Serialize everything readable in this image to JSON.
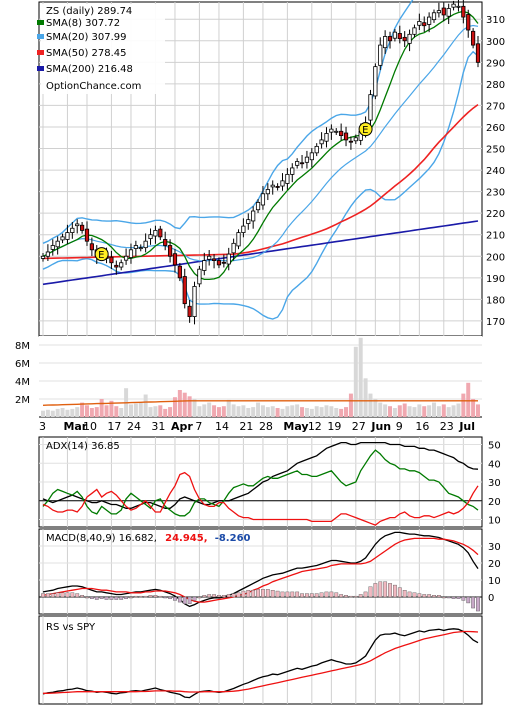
{
  "chart_data": [
    {
      "type": "candlestick",
      "title": "ZS (daily) 289.74",
      "source": "OptionChance.com",
      "legend_placement": "top-left",
      "y_ticks": [
        170,
        180,
        190,
        200,
        210,
        220,
        230,
        240,
        250,
        260,
        270,
        280,
        290,
        300,
        310
      ],
      "ylim": [
        163,
        318
      ],
      "x_ticks": [
        "3",
        "Mar",
        "10",
        "17",
        "24",
        "31",
        "Apr",
        "7",
        "14",
        "21",
        "28",
        "May",
        "12",
        "19",
        "27",
        "Jun",
        "9",
        "16",
        "23",
        "Jul"
      ],
      "legend": [
        {
          "label": "SMA(8) 307.72",
          "color": "#007a00"
        },
        {
          "label": "SMA(20) 307.99",
          "color": "#4aa6e8"
        },
        {
          "label": "SMA(50) 278.45",
          "color": "#ee2222"
        },
        {
          "label": "SMA(200) 216.48",
          "color": "#1a1aa8"
        }
      ],
      "bollinger_color": "#4aa6e8",
      "sma50_color": "#ee2222",
      "sma200_color": "#1a1aa8",
      "earnings_markers": [
        {
          "label": "E",
          "date_index": 12,
          "price": 201
        },
        {
          "label": "E",
          "date_index": 66,
          "price": 259
        }
      ],
      "close": [
        200,
        202,
        205,
        207,
        209,
        211,
        213,
        215,
        212,
        207,
        203,
        200,
        201,
        199,
        197,
        195,
        197,
        200,
        203,
        205,
        204,
        207,
        210,
        212,
        209,
        205,
        200,
        196,
        190,
        178,
        172,
        186,
        194,
        198,
        200,
        198,
        196,
        197,
        201,
        206,
        211,
        214,
        217,
        221,
        225,
        229,
        231,
        233,
        232,
        235,
        238,
        241,
        244,
        243,
        246,
        248,
        251,
        254,
        257,
        259,
        258,
        256,
        254,
        253,
        255,
        258,
        262,
        275,
        288,
        298,
        302,
        300,
        304,
        301,
        300,
        303,
        306,
        309,
        307,
        311,
        313,
        314,
        312,
        315,
        317,
        316,
        311,
        305,
        298,
        290
      ],
      "volume_axis": [
        "2M",
        "4M",
        "6M",
        "8M"
      ],
      "volume_max": 9,
      "volume_m": [
        0.7,
        0.8,
        0.7,
        0.9,
        1.0,
        0.8,
        0.9,
        1.1,
        1.6,
        1.3,
        1.0,
        1.1,
        2.0,
        1.3,
        1.8,
        1.2,
        1.0,
        3.2,
        1.4,
        1.5,
        1.6,
        2.5,
        1.1,
        1.2,
        1.3,
        0.9,
        1.1,
        2.2,
        3.0,
        2.7,
        2.3,
        2.0,
        1.2,
        1.4,
        1.6,
        1.3,
        1.1,
        1.2,
        1.9,
        1.4,
        1.2,
        1.3,
        1.0,
        1.1,
        1.6,
        1.3,
        1.1,
        1.2,
        1.0,
        0.9,
        1.2,
        1.3,
        1.4,
        1.1,
        1.0,
        0.9,
        1.2,
        1.1,
        1.3,
        1.2,
        1.0,
        0.9,
        1.1,
        2.6,
        7.8,
        8.8,
        4.3,
        2.6,
        2.0,
        1.6,
        1.4,
        1.2,
        1.0,
        1.3,
        1.5,
        1.2,
        1.1,
        1.4,
        1.2,
        1.3,
        1.6,
        1.2,
        1.4,
        1.1,
        1.3,
        1.5,
        2.6,
        3.8,
        2.0,
        1.4
      ],
      "volume_avg_color": "#e06010",
      "volume_avg_m": 1.7
    },
    {
      "type": "line",
      "title": "ADX(14) 36.85",
      "y_ticks": [
        10,
        20,
        30,
        40,
        50
      ],
      "ylim": [
        6,
        54
      ],
      "reference_line": 20,
      "series": [
        {
          "color": "#000000",
          "values": [
            21,
            20,
            19,
            20,
            21,
            22,
            23,
            22,
            21,
            20,
            19,
            19,
            20,
            19,
            18,
            18,
            17,
            16,
            16,
            17,
            18,
            19,
            19,
            18,
            17,
            16,
            16,
            18,
            21,
            22,
            21,
            20,
            19,
            18,
            18,
            19,
            20,
            20,
            20,
            21,
            22,
            23,
            24,
            26,
            28,
            30,
            31,
            33,
            34,
            35,
            36,
            38,
            40,
            41,
            42,
            43,
            44,
            46,
            48,
            49,
            50,
            51,
            51,
            50,
            50,
            51,
            51,
            51,
            51,
            51,
            51,
            50,
            50,
            50,
            49,
            49,
            49,
            48,
            48,
            47,
            47,
            46,
            45,
            44,
            43,
            41,
            40,
            38,
            37,
            36.85
          ]
        },
        {
          "color": "#007a00",
          "values": [
            17,
            20,
            24,
            26,
            25,
            24,
            23,
            25,
            22,
            17,
            14,
            13,
            17,
            15,
            13,
            13,
            15,
            21,
            24,
            22,
            20,
            18,
            16,
            20,
            21,
            17,
            15,
            13,
            12,
            12,
            14,
            19,
            21,
            21,
            19,
            18,
            17,
            20,
            24,
            27,
            28,
            29,
            28,
            28,
            30,
            32,
            33,
            32,
            32,
            33,
            34,
            35,
            36,
            34,
            34,
            33,
            33,
            34,
            35,
            36,
            33,
            30,
            28,
            29,
            30,
            36,
            40,
            44,
            47,
            45,
            42,
            40,
            39,
            37,
            37,
            36,
            36,
            35,
            33,
            31,
            31,
            30,
            27,
            24,
            23,
            22,
            20,
            18,
            17,
            15
          ]
        },
        {
          "color": "#ee1111",
          "values": [
            18,
            17,
            15,
            14,
            14,
            15,
            15,
            14,
            17,
            22,
            24,
            26,
            22,
            24,
            25,
            23,
            20,
            17,
            15,
            16,
            18,
            20,
            17,
            14,
            14,
            19,
            24,
            28,
            34,
            35,
            33,
            26,
            21,
            18,
            17,
            17,
            19,
            19,
            16,
            14,
            12,
            11,
            11,
            10,
            10,
            10,
            10,
            10,
            10,
            10,
            10,
            10,
            10,
            10,
            10,
            9,
            9,
            9,
            9,
            9,
            11,
            13,
            13,
            12,
            11,
            10,
            9,
            8,
            7,
            9,
            10,
            11,
            11,
            13,
            14,
            12,
            11,
            11,
            12,
            12,
            11,
            12,
            13,
            14,
            13,
            14,
            16,
            19,
            24,
            28
          ]
        }
      ]
    },
    {
      "type": "line",
      "title": "MACD(8,40,9) 16.682,",
      "title_value_red": "24.945,",
      "title_value_blue": "-8.260",
      "title_value_red_color": "#ee1111",
      "title_value_blue_color": "#1a4aa8",
      "y_ticks": [
        0,
        10,
        20,
        30
      ],
      "ylim": [
        -10,
        40
      ],
      "series": [
        {
          "color": "#000000",
          "values": [
            3,
            3.5,
            4,
            5,
            5.5,
            6,
            6.5,
            6.5,
            6,
            5,
            4,
            3,
            3,
            2.5,
            2,
            1.5,
            1.5,
            2,
            2.5,
            3,
            3,
            3.5,
            4,
            4.5,
            4,
            3,
            2,
            0.5,
            -1.5,
            -4,
            -5.5,
            -4.5,
            -3,
            -2,
            -1,
            -0.5,
            -0.5,
            0,
            1,
            2,
            3.5,
            5,
            6.5,
            8,
            9.5,
            11,
            12,
            13,
            13.5,
            14,
            15,
            16,
            17,
            17,
            17.5,
            18,
            18.5,
            19.5,
            20.5,
            21.5,
            21.5,
            21,
            20.5,
            20,
            20,
            21,
            23,
            27,
            31,
            34,
            36,
            37,
            38,
            38,
            37.5,
            37,
            37,
            36.5,
            36,
            36,
            35.5,
            35,
            34,
            33,
            32,
            31,
            29,
            26,
            21,
            16.68
          ]
        },
        {
          "color": "#ee1111",
          "values": [
            1,
            1.5,
            2,
            2.5,
            3,
            3.5,
            4,
            4.5,
            5,
            5,
            5,
            4.5,
            4,
            4,
            3.5,
            3,
            3,
            3,
            2.5,
            2.5,
            2.5,
            3,
            3,
            3.5,
            3.5,
            3.5,
            3,
            2.5,
            1.5,
            0,
            -1.5,
            -2.5,
            -3,
            -3,
            -2.5,
            -2,
            -1.5,
            -1,
            -0.5,
            0,
            1,
            1.5,
            2.5,
            4,
            5,
            6.5,
            7.5,
            9,
            10,
            11,
            12,
            13,
            14,
            15,
            15.5,
            16,
            16.5,
            17,
            17.5,
            18.5,
            19,
            19.5,
            19.5,
            19.5,
            19.5,
            19.5,
            20,
            21,
            23,
            25,
            27,
            29,
            31,
            32.5,
            33.5,
            34,
            34.5,
            34.5,
            34.5,
            34.5,
            34.5,
            34,
            34,
            33.5,
            33,
            32,
            31,
            29.5,
            27.5,
            24.95
          ]
        },
        {
          "color": "#222222",
          "values": [
            2,
            2,
            2,
            2.5,
            2.5,
            2.5,
            2.5,
            2,
            1,
            0,
            -1,
            -1.5,
            -1,
            -1.5,
            -1.5,
            -1.5,
            -1.5,
            -1,
            0,
            0.5,
            0.5,
            0.5,
            1,
            1,
            0.5,
            -0.5,
            -1,
            -2,
            -3,
            -4,
            -4,
            -2,
            0,
            1,
            1.5,
            1.5,
            1,
            1,
            1.5,
            2,
            2.5,
            3.5,
            4,
            4,
            4.5,
            4.5,
            4.5,
            4,
            3.5,
            3,
            3,
            3,
            3,
            2,
            2,
            2,
            2,
            2.5,
            3,
            3,
            2.5,
            1.5,
            1,
            0.5,
            0.5,
            1.5,
            3,
            6,
            8,
            9,
            9,
            8,
            7,
            5.5,
            4,
            3,
            2.5,
            2,
            1.5,
            1.5,
            1,
            1,
            0,
            -0.5,
            -1,
            -1,
            -2,
            -3.5,
            -6.5,
            -8.26
          ],
          "style": "histogram"
        }
      ]
    },
    {
      "type": "line",
      "title": "RS vs SPY",
      "series": [
        {
          "color": "#000000",
          "values": [
            0.8,
            1.2,
            1.4,
            1.8,
            2.0,
            2.4,
            2.6,
            3.0,
            2.6,
            2.0,
            1.8,
            1.4,
            1.6,
            1.4,
            1.0,
            0.8,
            1.2,
            1.4,
            1.8,
            2.0,
            1.8,
            2.2,
            2.6,
            3.0,
            2.4,
            2.0,
            1.4,
            1.0,
            0.6,
            -0.4,
            -0.6,
            0.6,
            1.6,
            1.8,
            2.0,
            1.6,
            1.4,
            1.6,
            2.2,
            2.8,
            3.6,
            4.4,
            5.0,
            5.8,
            6.6,
            7.2,
            7.6,
            8.2,
            8.0,
            8.6,
            9.2,
            9.8,
            10.4,
            10.0,
            10.6,
            11.2,
            11.6,
            12.4,
            13.0,
            13.6,
            13.0,
            12.6,
            12.0,
            12.0,
            12.4,
            13.6,
            15.0,
            18.0,
            21.0,
            22.8,
            23.2,
            23.2,
            23.6,
            23.0,
            22.6,
            23.2,
            23.8,
            24.4,
            24.0,
            24.6,
            24.8,
            25.0,
            24.6,
            25.0,
            25.2,
            25.0,
            24.2,
            22.8,
            21.0,
            20.0
          ]
        },
        {
          "color": "#ee1111",
          "values": [
            1.0,
            1.0,
            1.1,
            1.2,
            1.3,
            1.4,
            1.5,
            1.6,
            1.6,
            1.6,
            1.6,
            1.6,
            1.6,
            1.6,
            1.6,
            1.6,
            1.6,
            1.6,
            1.6,
            1.6,
            1.7,
            1.7,
            1.8,
            1.9,
            1.9,
            1.9,
            1.9,
            1.8,
            1.8,
            1.6,
            1.5,
            1.5,
            1.5,
            1.6,
            1.6,
            1.6,
            1.6,
            1.6,
            1.7,
            1.8,
            2.0,
            2.3,
            2.6,
            3.0,
            3.4,
            3.8,
            4.2,
            4.6,
            5.0,
            5.4,
            5.8,
            6.2,
            6.6,
            7.0,
            7.4,
            7.8,
            8.2,
            8.6,
            9.0,
            9.4,
            9.8,
            10.2,
            10.6,
            11.0,
            11.4,
            11.8,
            12.4,
            13.2,
            14.2,
            15.2,
            16.2,
            17.0,
            17.8,
            18.4,
            19.0,
            19.6,
            20.2,
            20.8,
            21.4,
            21.8,
            22.2,
            22.6,
            23.0,
            23.4,
            23.8,
            24.0,
            24.2,
            24.2,
            24.1,
            24.0
          ]
        }
      ]
    }
  ]
}
